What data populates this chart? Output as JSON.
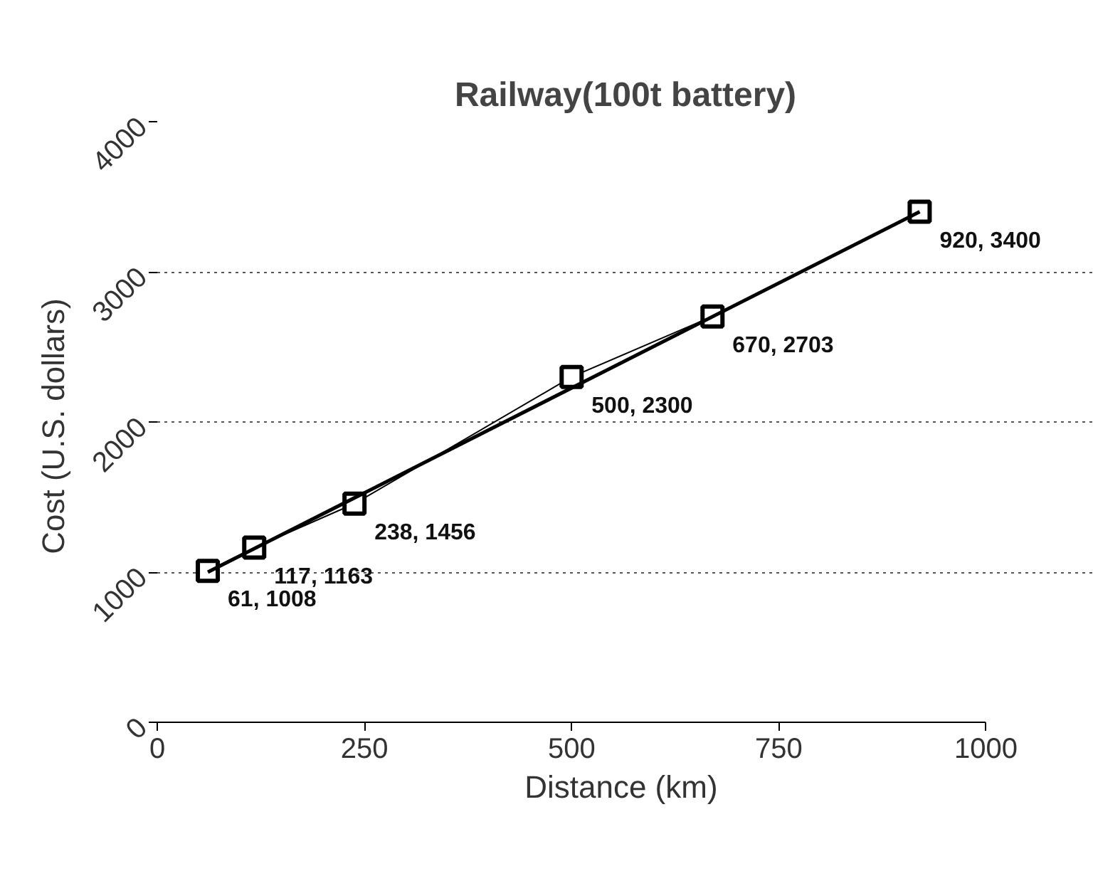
{
  "chart_data": {
    "type": "line",
    "title": "Railway(100t battery)",
    "xlabel": "Distance  (km)",
    "ylabel": "Cost  (U.S. dollars)",
    "xlim": [
      0,
      1000
    ],
    "xticks": [
      0,
      250,
      500,
      750,
      1000
    ],
    "ylim": [
      0,
      4000
    ],
    "yticks": [
      0,
      1000,
      2000,
      3000,
      4000
    ],
    "grid": "y",
    "series": [
      {
        "color": "#000000",
        "marker": "square",
        "x": [
          61,
          117,
          238,
          500,
          670,
          920
        ],
        "values": [
          1008,
          1163,
          1456,
          2300,
          2703,
          3400
        ],
        "value_labels": [
          "61, 1008",
          "117, 1163",
          "238, 1456",
          "500, 2300",
          "670, 2703",
          "920, 3400"
        ]
      },
      {
        "color": "#000000",
        "marker": "none",
        "x": [
          61,
          920
        ],
        "values": [
          1000,
          3400
        ]
      }
    ]
  }
}
